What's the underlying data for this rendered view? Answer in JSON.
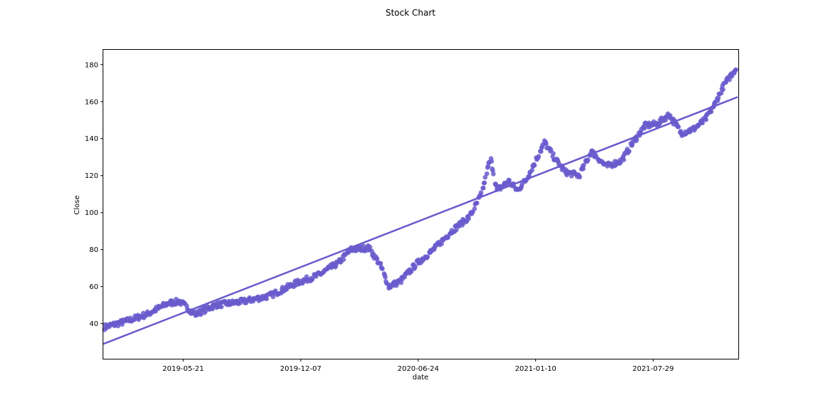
{
  "chart_data": {
    "type": "scatter",
    "title": "Stock Chart",
    "xlabel": "date",
    "ylabel": "Close",
    "x_ticks": [
      "2019-05-21",
      "2019-12-07",
      "2020-06-24",
      "2021-01-10",
      "2021-07-29"
    ],
    "y_ticks": [
      40,
      60,
      80,
      100,
      120,
      140,
      160,
      180
    ],
    "xlim": [
      "2019-01-05",
      "2021-12-21"
    ],
    "ylim": [
      21,
      188
    ],
    "grid": false,
    "colors": {
      "points": "#6a5acd",
      "line": "#6a5acd"
    },
    "series": [
      {
        "keypoints": [
          [
            "2019-01-05",
            38
          ],
          [
            "2019-02-10",
            41
          ],
          [
            "2019-03-20",
            45
          ],
          [
            "2019-04-25",
            51
          ],
          [
            "2019-05-15",
            52
          ],
          [
            "2019-06-10",
            45
          ],
          [
            "2019-07-15",
            50
          ],
          [
            "2019-09-01",
            52
          ],
          [
            "2019-10-15",
            55
          ],
          [
            "2019-11-30",
            62
          ],
          [
            "2020-01-05",
            66
          ],
          [
            "2020-02-10",
            73
          ],
          [
            "2020-03-01",
            80
          ],
          [
            "2020-04-01",
            81
          ],
          [
            "2020-04-20",
            72
          ],
          [
            "2020-05-05",
            60
          ],
          [
            "2020-05-25",
            63
          ],
          [
            "2020-06-20",
            72
          ],
          [
            "2020-07-20",
            80
          ],
          [
            "2020-08-20",
            90
          ],
          [
            "2020-09-20",
            98
          ],
          [
            "2020-10-10",
            110
          ],
          [
            "2020-10-25",
            130
          ],
          [
            "2020-11-05",
            112
          ],
          [
            "2020-11-25",
            117
          ],
          [
            "2020-12-10",
            112
          ],
          [
            "2020-12-25",
            118
          ],
          [
            "2021-01-10",
            128
          ],
          [
            "2021-01-25",
            138
          ],
          [
            "2021-02-10",
            130
          ],
          [
            "2021-03-01",
            122
          ],
          [
            "2021-03-25",
            120
          ],
          [
            "2021-04-15",
            133
          ],
          [
            "2021-05-10",
            125
          ],
          [
            "2021-06-05",
            128
          ],
          [
            "2021-06-25",
            138
          ],
          [
            "2021-07-15",
            147
          ],
          [
            "2021-08-05",
            148
          ],
          [
            "2021-08-25",
            153
          ],
          [
            "2021-09-15",
            143
          ],
          [
            "2021-10-05",
            145
          ],
          [
            "2021-10-25",
            150
          ],
          [
            "2021-11-10",
            158
          ],
          [
            "2021-11-25",
            168
          ],
          [
            "2021-12-10",
            175
          ],
          [
            "2021-12-20",
            179
          ]
        ]
      }
    ],
    "regression": {
      "start": [
        "2019-01-05",
        29
      ],
      "end": [
        "2021-12-20",
        162.5
      ]
    }
  }
}
